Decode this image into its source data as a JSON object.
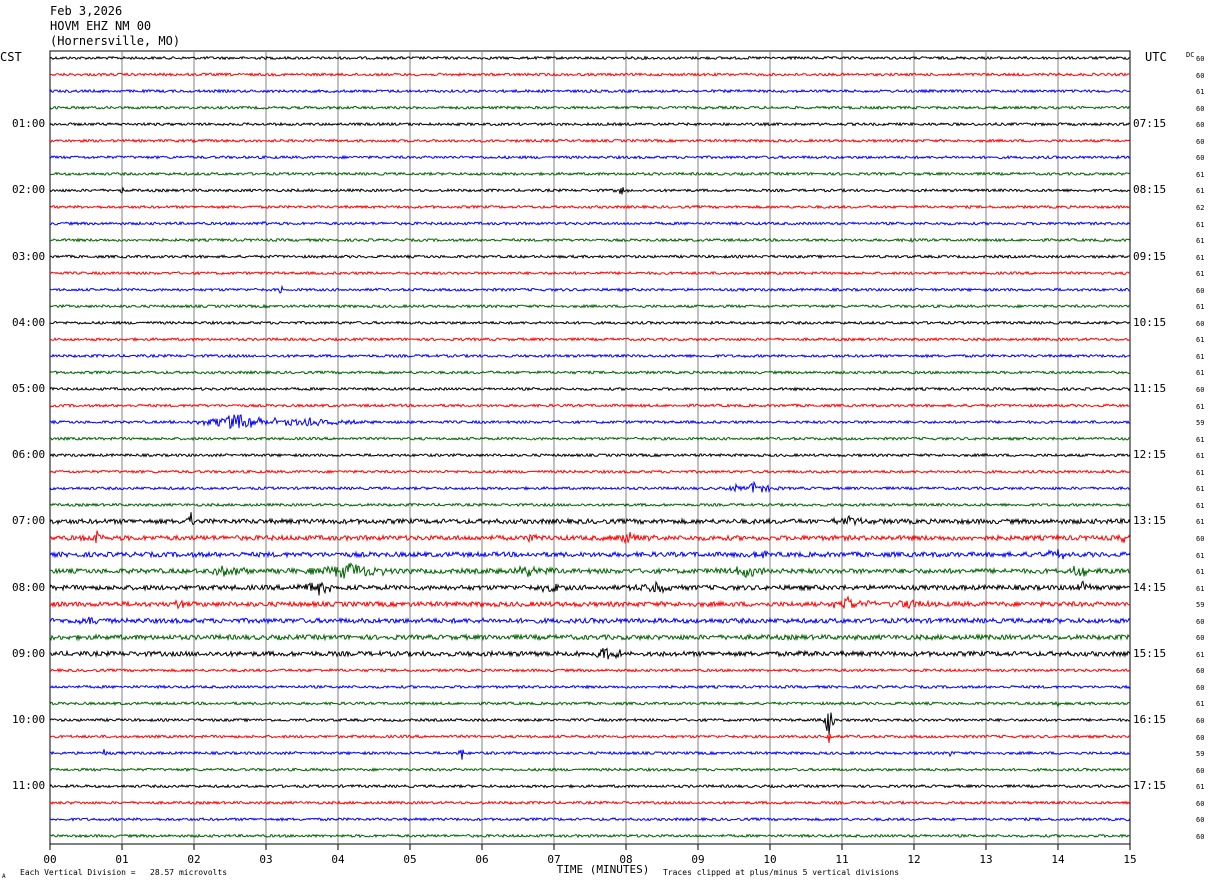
{
  "header": {
    "date": "Feb 3,2026",
    "station": "HOVM EHZ NM 00",
    "location": "(Hornersville, MO)"
  },
  "left_zone": "CST",
  "right_zone": "UTC",
  "dc_label": "DC",
  "footer": {
    "scale": "Each Vertical Division =   28.57 microvolts",
    "clip": "Traces clipped at plus/minus 5 vertical divisions",
    "corner_mark": "A"
  },
  "chart_data": {
    "type": "line",
    "xlabel": "TIME (MINUTES)",
    "x_ticks": [
      "00",
      "01",
      "02",
      "03",
      "04",
      "05",
      "06",
      "07",
      "08",
      "09",
      "10",
      "11",
      "12",
      "13",
      "14",
      "15"
    ],
    "xlim": [
      0,
      15
    ],
    "grid": true,
    "trace_colors": [
      "#000000",
      "#ff0000",
      "#0000ff",
      "#006400"
    ],
    "left_hour_labels": [
      {
        "row": 4,
        "label": "01:00"
      },
      {
        "row": 8,
        "label": "02:00"
      },
      {
        "row": 12,
        "label": "03:00"
      },
      {
        "row": 16,
        "label": "04:00"
      },
      {
        "row": 20,
        "label": "05:00"
      },
      {
        "row": 24,
        "label": "06:00"
      },
      {
        "row": 28,
        "label": "07:00"
      },
      {
        "row": 32,
        "label": "08:00"
      },
      {
        "row": 36,
        "label": "09:00"
      },
      {
        "row": 40,
        "label": "10:00"
      },
      {
        "row": 44,
        "label": "11:00"
      }
    ],
    "right_hour_labels": [
      {
        "row": 4,
        "label": "07:15"
      },
      {
        "row": 8,
        "label": "08:15"
      },
      {
        "row": 12,
        "label": "09:15"
      },
      {
        "row": 16,
        "label": "10:15"
      },
      {
        "row": 20,
        "label": "11:15"
      },
      {
        "row": 24,
        "label": "12:15"
      },
      {
        "row": 28,
        "label": "13:15"
      },
      {
        "row": 32,
        "label": "14:15"
      },
      {
        "row": 36,
        "label": "15:15"
      },
      {
        "row": 40,
        "label": "16:15"
      },
      {
        "row": 44,
        "label": "17:15"
      }
    ],
    "dc_offsets": [
      "60",
      "60",
      "61",
      "60",
      "60",
      "60",
      "60",
      "61",
      "61",
      "62",
      "61",
      "61",
      "61",
      "61",
      "60",
      "61",
      "60",
      "61",
      "61",
      "61",
      "60",
      "61",
      "59",
      "61",
      "61",
      "61",
      "61",
      "61",
      "61",
      "60",
      "61",
      "61",
      "61",
      "59",
      "60",
      "60",
      "61",
      "60",
      "60",
      "61",
      "60",
      "60",
      "59",
      "60",
      "61",
      "60",
      "60",
      "60"
    ],
    "events": [
      {
        "row": 8,
        "t": 7.95,
        "amp": 6,
        "dur": 0.08
      },
      {
        "row": 8,
        "t": 1.0,
        "amp": 3,
        "dur": 0.05
      },
      {
        "row": 10,
        "t": 3.0,
        "amp": 7,
        "dur": 0.06
      },
      {
        "row": 11,
        "t": 11.97,
        "amp": 4,
        "dur": 0.04
      },
      {
        "row": 14,
        "t": 3.22,
        "amp": 6,
        "dur": 0.05
      },
      {
        "row": 22,
        "t": 2.6,
        "amp": 9,
        "dur": 0.7
      },
      {
        "row": 22,
        "t": 3.5,
        "amp": 4,
        "dur": 0.9
      },
      {
        "row": 26,
        "t": 9.5,
        "amp": 6,
        "dur": 0.05
      },
      {
        "row": 26,
        "t": 9.8,
        "amp": 7,
        "dur": 0.3
      },
      {
        "row": 28,
        "t": 1.95,
        "amp": 14,
        "dur": 0.06
      },
      {
        "row": 28,
        "t": 11.1,
        "amp": 5,
        "dur": 0.3
      },
      {
        "row": 29,
        "t": 0.65,
        "amp": 8,
        "dur": 0.15
      },
      {
        "row": 29,
        "t": 8.05,
        "amp": 7,
        "dur": 0.25
      },
      {
        "row": 29,
        "t": 6.65,
        "amp": 5,
        "dur": 0.15
      },
      {
        "row": 29,
        "t": 14.95,
        "amp": 8,
        "dur": 0.1
      },
      {
        "row": 30,
        "t": 14.0,
        "amp": 6,
        "dur": 0.2
      },
      {
        "row": 30,
        "t": 9.8,
        "amp": 4,
        "dur": 0.2
      },
      {
        "row": 31,
        "t": 2.5,
        "amp": 7,
        "dur": 0.3
      },
      {
        "row": 31,
        "t": 4.2,
        "amp": 9,
        "dur": 0.6
      },
      {
        "row": 31,
        "t": 6.6,
        "amp": 7,
        "dur": 0.4
      },
      {
        "row": 31,
        "t": 9.7,
        "amp": 6,
        "dur": 0.4
      },
      {
        "row": 31,
        "t": 14.3,
        "amp": 7,
        "dur": 0.2
      },
      {
        "row": 32,
        "t": 3.7,
        "amp": 8,
        "dur": 0.3
      },
      {
        "row": 32,
        "t": 6.95,
        "amp": 7,
        "dur": 0.15
      },
      {
        "row": 32,
        "t": 8.4,
        "amp": 6,
        "dur": 0.3
      },
      {
        "row": 32,
        "t": 14.35,
        "amp": 7,
        "dur": 0.15
      },
      {
        "row": 33,
        "t": 11.1,
        "amp": 8,
        "dur": 0.3
      },
      {
        "row": 33,
        "t": 11.9,
        "amp": 5,
        "dur": 0.3
      },
      {
        "row": 33,
        "t": 1.8,
        "amp": 5,
        "dur": 0.1
      },
      {
        "row": 34,
        "t": 0.55,
        "amp": 5,
        "dur": 0.25
      },
      {
        "row": 36,
        "t": 7.7,
        "amp": 5,
        "dur": 0.6
      },
      {
        "row": 36,
        "t": 10.5,
        "amp": 4,
        "dur": 0.1
      },
      {
        "row": 39,
        "t": 14.0,
        "amp": 4,
        "dur": 0.05
      },
      {
        "row": 40,
        "t": 10.82,
        "amp": 24,
        "dur": 0.07
      },
      {
        "row": 40,
        "t": 11.35,
        "amp": 5,
        "dur": 0.1
      },
      {
        "row": 41,
        "t": 10.82,
        "amp": 10,
        "dur": 0.05
      },
      {
        "row": 42,
        "t": 0.75,
        "amp": 5,
        "dur": 0.05
      },
      {
        "row": 42,
        "t": 5.72,
        "amp": 8,
        "dur": 0.06
      },
      {
        "row": 42,
        "t": 12.5,
        "amp": 3,
        "dur": 0.05
      }
    ]
  }
}
